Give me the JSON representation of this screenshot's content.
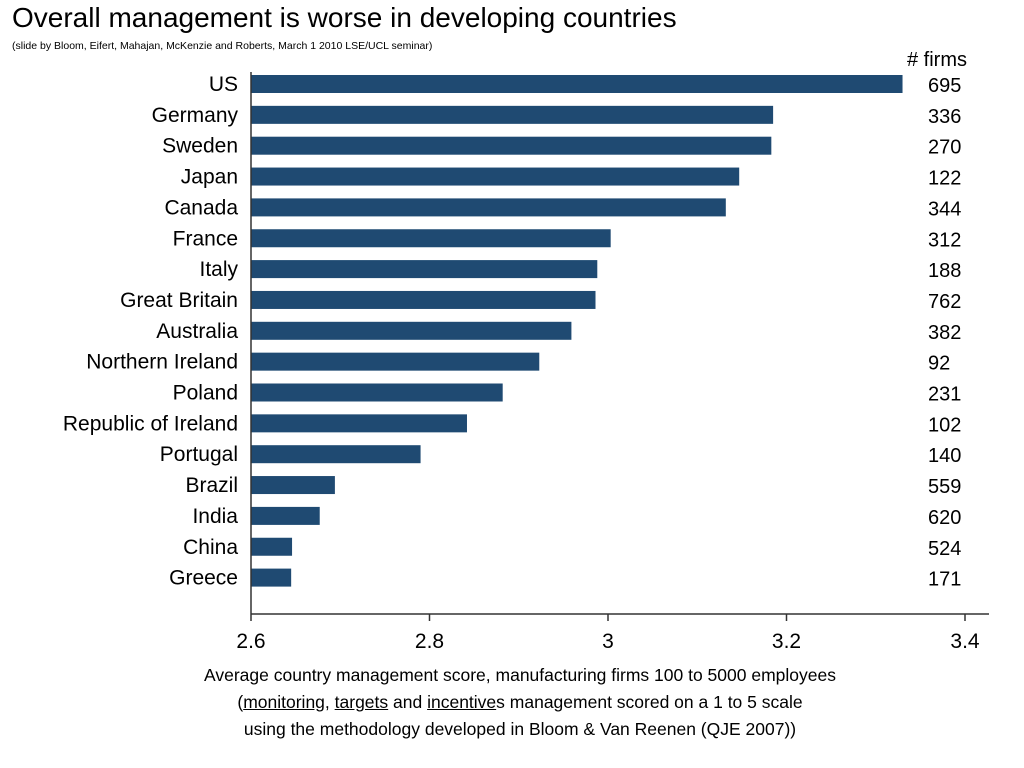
{
  "slide": {
    "title": "Overall management is worse in developing countries",
    "subtitle": "(slide by Bloom, Eifert, Mahajan, McKenzie and Roberts, March 1 2010 LSE/UCL seminar)"
  },
  "caption": {
    "line1": "Average country management score, manufacturing firms 100 to 5000 employees",
    "line2_open": "(",
    "line2_monitoring": "monitoring",
    "line2_sep1": ", ",
    "line2_targets": "targets",
    "line2_sep2": " and ",
    "line2_incentive": "incentive",
    "line2_rest": "s management scored on a 1 to 5 scale",
    "line3": "using the methodology developed in Bloom & Van Reenen (QJE 2007))"
  },
  "chart_data": {
    "type": "bar",
    "orientation": "horizontal",
    "title": "Overall management is worse in developing countries",
    "xlabel": "Average country management score",
    "categories": [
      "US",
      "Germany",
      "Sweden",
      "Japan",
      "Canada",
      "France",
      "Italy",
      "Great Britain",
      "Australia",
      "Northern Ireland",
      "Poland",
      "Republic of Ireland",
      "Portugal",
      "Brazil",
      "India",
      "China",
      "Greece"
    ],
    "values": [
      3.33,
      3.185,
      3.183,
      3.147,
      3.132,
      3.003,
      2.988,
      2.986,
      2.959,
      2.923,
      2.882,
      2.842,
      2.79,
      2.694,
      2.677,
      2.646,
      2.645
    ],
    "firms_header": "# firms",
    "firms": [
      "695",
      "336",
      "270",
      "122",
      "344",
      "312",
      "188",
      "762",
      "382",
      "92",
      "231",
      "102",
      "140",
      "559",
      "620",
      "524",
      "171"
    ],
    "xlim": [
      2.6,
      3.4
    ],
    "xticks": [
      "2.6",
      "2.8",
      "3",
      "3.2",
      "3.4"
    ],
    "grid": false,
    "bar_color": "#1f4a72"
  }
}
